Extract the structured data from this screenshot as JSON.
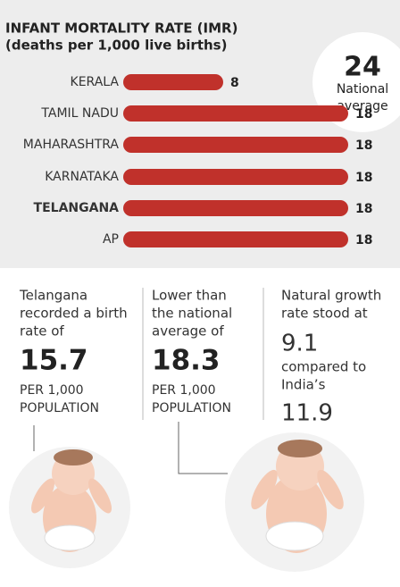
{
  "chart_data": {
    "type": "bar",
    "orientation": "horizontal",
    "title": "INFANT MORTALITY RATE (IMR)",
    "subtitle": "(deaths per 1,000 live births)",
    "categories": [
      "KERALA",
      "TAMIL NADU",
      "MAHARASHTRA",
      "KARNATAKA",
      "TELANGANA",
      "AP"
    ],
    "values": [
      8,
      18,
      18,
      18,
      18,
      18
    ],
    "color": "#c0312b"
  },
  "national_average": {
    "value": 24,
    "label": [
      "National",
      "average"
    ]
  },
  "stats": [
    {
      "lines": [
        "Telangana",
        "recorded a birth",
        "rate of"
      ],
      "value": 15.7,
      "unit": [
        "PER 1,000",
        "POPULATION"
      ]
    },
    {
      "lines": [
        "Lower than",
        "the national",
        "average of"
      ],
      "value": 18.3,
      "unit": [
        "PER 1,000",
        "POPULATION"
      ]
    },
    {
      "lines": [
        "Natural growth",
        "rate stood at"
      ],
      "value": 9.1,
      "middle": [
        "compared to",
        "India’s"
      ],
      "value2": 11.9
    }
  ]
}
